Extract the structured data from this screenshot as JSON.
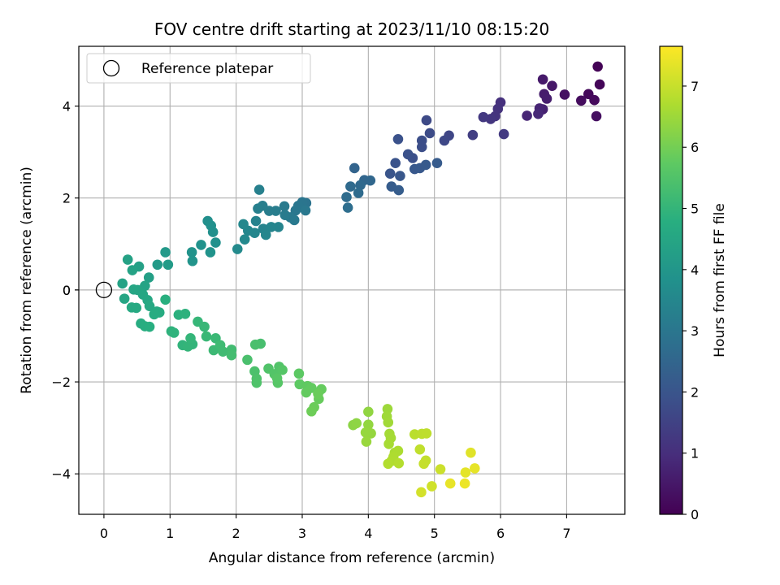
{
  "chart_data": {
    "type": "scatter",
    "title": "FOV centre drift starting at 2023/11/10 08:15:20",
    "xlabel": "Angular distance from reference (arcmin)",
    "ylabel": "Rotation from reference (arcmin)",
    "colorbar_label": "Hours from first FF file",
    "xlim": [
      -0.38,
      7.88
    ],
    "ylim": [
      -4.88,
      5.3
    ],
    "clim": [
      0,
      7.65
    ],
    "colormap": "viridis",
    "xticks": [
      0,
      1,
      2,
      3,
      4,
      5,
      6,
      7
    ],
    "yticks": [
      -4,
      -2,
      0,
      2,
      4
    ],
    "cticks": [
      0,
      1,
      2,
      3,
      4,
      5,
      6,
      7
    ],
    "grid": true,
    "legend": {
      "position": "top-left",
      "entries": [
        "Reference platepar"
      ]
    },
    "reference_point": {
      "x": 0,
      "y": 0
    },
    "points": [
      [
        7.47,
        4.86,
        0.05
      ],
      [
        7.5,
        4.47,
        0.1
      ],
      [
        7.33,
        4.26,
        0.15
      ],
      [
        7.42,
        4.13,
        0.2
      ],
      [
        7.22,
        4.12,
        0.25
      ],
      [
        7.45,
        3.78,
        0.3
      ],
      [
        6.97,
        4.25,
        0.35
      ],
      [
        6.78,
        4.44,
        0.5
      ],
      [
        6.64,
        4.58,
        0.55
      ],
      [
        6.66,
        4.26,
        0.6
      ],
      [
        6.7,
        4.16,
        0.62
      ],
      [
        6.64,
        3.93,
        0.7
      ],
      [
        6.59,
        3.95,
        0.75
      ],
      [
        6.4,
        3.79,
        0.8
      ],
      [
        6.57,
        3.83,
        0.85
      ],
      [
        6.0,
        4.08,
        1.05
      ],
      [
        5.96,
        3.94,
        1.1
      ],
      [
        5.92,
        3.78,
        1.15
      ],
      [
        5.85,
        3.72,
        1.2
      ],
      [
        5.74,
        3.76,
        1.25
      ],
      [
        6.05,
        3.39,
        1.3
      ],
      [
        5.58,
        3.37,
        1.4
      ],
      [
        5.22,
        3.36,
        1.6
      ],
      [
        5.15,
        3.25,
        1.65
      ],
      [
        4.88,
        3.69,
        1.7
      ],
      [
        4.93,
        3.41,
        1.75
      ],
      [
        4.81,
        3.25,
        1.8
      ],
      [
        4.81,
        3.11,
        1.82
      ],
      [
        4.67,
        2.87,
        1.85
      ],
      [
        4.6,
        2.95,
        1.88
      ],
      [
        4.45,
        3.28,
        1.9
      ],
      [
        4.41,
        2.76,
        1.95
      ],
      [
        4.33,
        2.53,
        2.0
      ],
      [
        4.48,
        2.48,
        2.05
      ],
      [
        4.7,
        2.63,
        2.1
      ],
      [
        4.78,
        2.65,
        2.12
      ],
      [
        4.87,
        2.72,
        2.15
      ],
      [
        5.04,
        2.76,
        2.18
      ],
      [
        4.35,
        2.25,
        2.2
      ],
      [
        4.46,
        2.17,
        2.25
      ],
      [
        3.79,
        2.65,
        2.45
      ],
      [
        3.94,
        2.39,
        2.5
      ],
      [
        4.03,
        2.38,
        2.55
      ],
      [
        3.88,
        2.28,
        2.6
      ],
      [
        3.73,
        2.25,
        2.62
      ],
      [
        3.85,
        2.11,
        2.65
      ],
      [
        3.67,
        2.02,
        2.7
      ],
      [
        3.69,
        1.79,
        2.75
      ],
      [
        3.06,
        1.89,
        2.9
      ],
      [
        3.0,
        1.91,
        2.95
      ],
      [
        2.94,
        1.83,
        3.0
      ],
      [
        2.9,
        1.73,
        3.02
      ],
      [
        3.05,
        1.73,
        3.05
      ],
      [
        2.82,
        1.58,
        3.08
      ],
      [
        2.88,
        1.52,
        3.1
      ],
      [
        2.73,
        1.82,
        3.12
      ],
      [
        2.74,
        1.63,
        3.15
      ],
      [
        2.6,
        1.72,
        3.2
      ],
      [
        2.5,
        1.72,
        3.22
      ],
      [
        2.4,
        1.83,
        3.25
      ],
      [
        2.33,
        1.77,
        3.28
      ],
      [
        2.35,
        2.18,
        3.3
      ],
      [
        2.3,
        1.5,
        3.35
      ],
      [
        2.41,
        1.33,
        3.38
      ],
      [
        2.64,
        1.37,
        3.42
      ],
      [
        2.53,
        1.37,
        3.45
      ],
      [
        2.45,
        1.2,
        3.48
      ],
      [
        2.28,
        1.24,
        3.5
      ],
      [
        2.18,
        1.29,
        3.53
      ],
      [
        2.11,
        1.43,
        3.55
      ],
      [
        2.13,
        1.1,
        3.58
      ],
      [
        2.02,
        0.89,
        3.6
      ],
      [
        1.57,
        1.5,
        3.75
      ],
      [
        1.62,
        1.4,
        3.78
      ],
      [
        1.65,
        1.26,
        3.8
      ],
      [
        1.69,
        1.03,
        3.82
      ],
      [
        1.47,
        0.98,
        3.85
      ],
      [
        1.61,
        0.82,
        3.88
      ],
      [
        1.33,
        0.82,
        3.9
      ],
      [
        1.34,
        0.63,
        3.93
      ],
      [
        0.93,
        0.82,
        4.1
      ],
      [
        0.81,
        0.55,
        4.12
      ],
      [
        0.97,
        0.55,
        4.15
      ],
      [
        0.68,
        0.27,
        4.3
      ],
      [
        0.53,
        0.51,
        4.32
      ],
      [
        0.36,
        0.66,
        4.35
      ],
      [
        0.43,
        0.43,
        4.38
      ],
      [
        0.28,
        0.14,
        4.4
      ],
      [
        0.62,
        0.09,
        4.42
      ],
      [
        0.51,
        0.0,
        4.45
      ],
      [
        0.45,
        0.01,
        4.48
      ],
      [
        0.31,
        -0.19,
        4.5
      ],
      [
        0.59,
        -0.1,
        4.52
      ],
      [
        0.66,
        -0.22,
        4.55
      ],
      [
        0.69,
        -0.35,
        4.58
      ],
      [
        0.42,
        -0.38,
        4.6
      ],
      [
        0.49,
        -0.39,
        4.62
      ],
      [
        0.8,
        -0.47,
        4.65
      ],
      [
        0.84,
        -0.49,
        4.68
      ],
      [
        0.76,
        -0.53,
        4.7
      ],
      [
        0.56,
        -0.73,
        4.72
      ],
      [
        0.62,
        -0.79,
        4.75
      ],
      [
        0.69,
        -0.8,
        4.78
      ],
      [
        0.93,
        -0.21,
        4.8
      ],
      [
        1.13,
        -0.54,
        4.85
      ],
      [
        1.23,
        -0.52,
        4.88
      ],
      [
        1.02,
        -0.9,
        4.9
      ],
      [
        1.06,
        -0.93,
        4.92
      ],
      [
        1.19,
        -1.2,
        4.95
      ],
      [
        1.34,
        -1.18,
        4.98
      ],
      [
        1.27,
        -1.23,
        5.0
      ],
      [
        1.31,
        -1.05,
        5.02
      ],
      [
        1.42,
        -0.69,
        5.05
      ],
      [
        1.52,
        -0.8,
        5.08
      ],
      [
        1.55,
        -1.01,
        5.1
      ],
      [
        1.69,
        -1.05,
        5.12
      ],
      [
        1.66,
        -1.31,
        5.15
      ],
      [
        1.76,
        -1.2,
        5.2
      ],
      [
        1.8,
        -1.34,
        5.22
      ],
      [
        1.93,
        -1.3,
        5.25
      ],
      [
        1.93,
        -1.42,
        5.28
      ],
      [
        2.37,
        -1.17,
        5.35
      ],
      [
        2.29,
        -1.19,
        5.38
      ],
      [
        2.17,
        -1.52,
        5.4
      ],
      [
        2.28,
        -1.77,
        5.42
      ],
      [
        2.31,
        -1.93,
        5.45
      ],
      [
        2.31,
        -2.02,
        5.48
      ],
      [
        2.49,
        -1.71,
        5.5
      ],
      [
        2.65,
        -1.67,
        5.52
      ],
      [
        2.58,
        -1.83,
        5.55
      ],
      [
        2.7,
        -1.74,
        5.58
      ],
      [
        2.63,
        -2.02,
        5.6
      ],
      [
        2.62,
        -1.92,
        5.62
      ],
      [
        2.95,
        -1.82,
        5.7
      ],
      [
        2.96,
        -2.05,
        5.72
      ],
      [
        3.08,
        -2.09,
        5.75
      ],
      [
        3.14,
        -2.13,
        5.78
      ],
      [
        3.06,
        -2.23,
        5.8
      ],
      [
        3.29,
        -2.16,
        5.82
      ],
      [
        3.25,
        -2.37,
        5.85
      ],
      [
        3.24,
        -2.26,
        5.88
      ],
      [
        3.18,
        -2.55,
        5.9
      ],
      [
        3.14,
        -2.64,
        5.92
      ],
      [
        3.77,
        -2.94,
        6.3
      ],
      [
        3.82,
        -2.9,
        6.32
      ],
      [
        4.0,
        -2.65,
        6.35
      ],
      [
        4.0,
        -2.93,
        6.38
      ],
      [
        4.04,
        -3.12,
        6.4
      ],
      [
        3.96,
        -3.1,
        6.42
      ],
      [
        3.97,
        -3.3,
        6.45
      ],
      [
        4.29,
        -2.59,
        6.5
      ],
      [
        4.28,
        -2.75,
        6.52
      ],
      [
        4.3,
        -2.88,
        6.55
      ],
      [
        4.32,
        -3.13,
        6.58
      ],
      [
        4.34,
        -3.22,
        6.6
      ],
      [
        4.31,
        -3.35,
        6.62
      ],
      [
        4.4,
        -3.54,
        6.65
      ],
      [
        4.45,
        -3.5,
        6.68
      ],
      [
        4.38,
        -3.63,
        6.7
      ],
      [
        4.35,
        -3.72,
        6.72
      ],
      [
        4.3,
        -3.78,
        6.75
      ],
      [
        4.46,
        -3.77,
        6.78
      ],
      [
        4.7,
        -3.14,
        6.85
      ],
      [
        4.81,
        -3.13,
        6.88
      ],
      [
        4.88,
        -3.12,
        6.9
      ],
      [
        4.78,
        -3.47,
        6.92
      ],
      [
        4.87,
        -3.71,
        6.95
      ],
      [
        4.84,
        -3.78,
        6.98
      ],
      [
        5.09,
        -3.9,
        7.05
      ],
      [
        4.96,
        -4.27,
        7.1
      ],
      [
        4.8,
        -4.4,
        7.15
      ],
      [
        5.55,
        -3.54,
        7.3
      ],
      [
        5.47,
        -3.97,
        7.35
      ],
      [
        5.61,
        -3.88,
        7.38
      ],
      [
        5.24,
        -4.21,
        7.4
      ],
      [
        5.46,
        -4.21,
        7.45
      ]
    ]
  }
}
